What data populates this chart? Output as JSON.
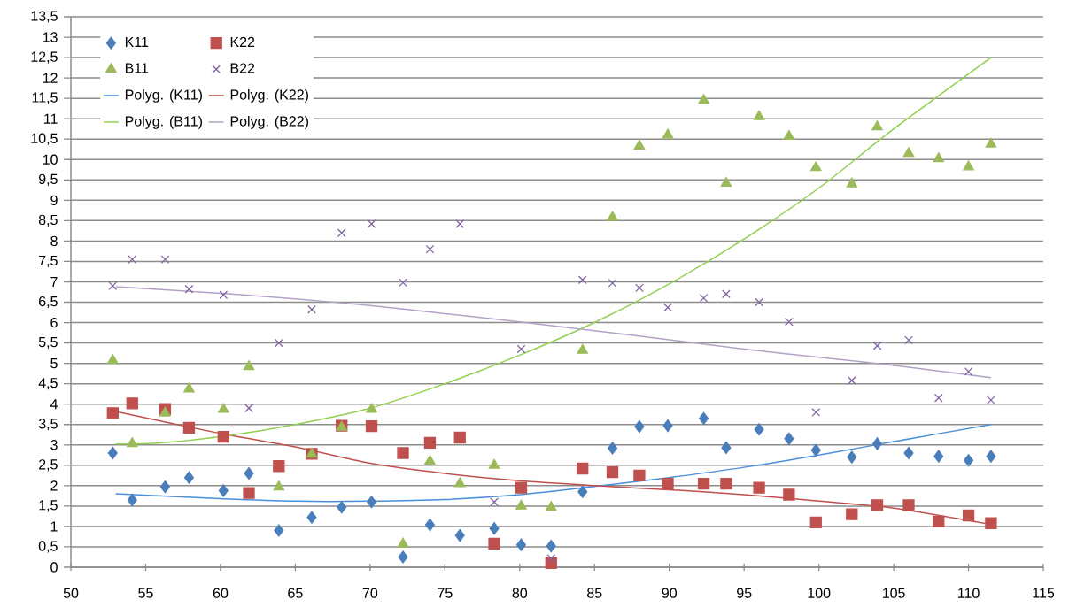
{
  "chart_data": {
    "type": "scatter",
    "grid": "y",
    "legend": "top left",
    "xlim": [
      50,
      115
    ],
    "xticks": [
      50,
      55,
      60,
      65,
      70,
      75,
      80,
      85,
      90,
      95,
      100,
      105,
      110,
      115
    ],
    "ylim": [
      0,
      13.5
    ],
    "yticks": [
      0,
      {
        "value": 0.5,
        "label": "0,5"
      },
      1,
      {
        "value": 1.5,
        "label": "1,5"
      },
      2,
      {
        "value": 2.5,
        "label": "2,5"
      },
      3,
      {
        "value": 3.5,
        "label": "3,5"
      },
      4,
      {
        "value": 4.5,
        "label": "4,5"
      },
      5,
      {
        "value": 5.5,
        "label": "5,5"
      },
      6,
      {
        "value": 6.5,
        "label": "6,5"
      },
      7,
      {
        "value": 7.5,
        "label": "7,5"
      },
      8,
      {
        "value": 8.5,
        "label": "8,5"
      },
      9,
      {
        "value": 9.5,
        "label": "9,5"
      },
      10,
      {
        "value": 10.5,
        "label": "10,5"
      },
      11,
      {
        "value": 11.5,
        "label": "11,5"
      },
      12,
      {
        "value": 12.5,
        "label": "12,5"
      },
      13,
      {
        "value": 13.5,
        "label": "13,5"
      }
    ],
    "x": [
      52.8,
      54.1,
      56.3,
      57.9,
      60.2,
      61.9,
      63.9,
      66.1,
      68.1,
      70.1,
      72.2,
      74,
      76,
      78.3,
      80.1,
      82.1,
      84.2,
      86.2,
      88,
      89.9,
      92.3,
      93.8,
      96,
      98,
      99.8,
      102.2,
      103.9,
      106,
      108,
      110,
      111.5
    ],
    "series": [
      {
        "name": "K11",
        "color": "#4a7ebb",
        "marker": "diamond",
        "values": [
          2.8,
          1.65,
          1.97,
          2.2,
          1.88,
          2.3,
          0.9,
          1.22,
          1.47,
          1.6,
          0.25,
          1.04,
          0.78,
          0.95,
          0.55,
          0.52,
          1.85,
          2.92,
          3.45,
          3.47,
          3.65,
          2.93,
          3.38,
          3.15,
          2.87,
          2.7,
          3.03,
          2.8,
          2.72,
          2.62,
          2.72
        ]
      },
      {
        "name": "K22",
        "color": "#c0504d",
        "marker": "square",
        "values": [
          3.78,
          4.02,
          3.88,
          3.42,
          3.2,
          1.82,
          2.48,
          2.78,
          3.47,
          3.46,
          2.8,
          3.05,
          3.18,
          0.58,
          1.95,
          0.1,
          2.42,
          2.33,
          2.25,
          2.05,
          2.05,
          2.05,
          1.95,
          1.78,
          1.1,
          1.3,
          1.52,
          1.52,
          1.12,
          1.27,
          1.08
        ]
      },
      {
        "name": "B11",
        "color": "#9bbb59",
        "marker": "triangle",
        "values": [
          5.07,
          3.03,
          3.78,
          4.37,
          3.87,
          4.92,
          1.97,
          2.77,
          3.43,
          3.87,
          0.57,
          2.6,
          2.05,
          2.5,
          1.5,
          1.47,
          5.32,
          8.58,
          10.33,
          10.6,
          11.45,
          9.42,
          11.05,
          10.57,
          9.8,
          9.4,
          10.8,
          10.15,
          10.02,
          9.82,
          10.38
        ]
      },
      {
        "name": "B22",
        "color": "#8064a2",
        "marker": "cross",
        "values": [
          6.9,
          7.55,
          7.55,
          6.82,
          6.68,
          3.9,
          5.5,
          6.32,
          8.2,
          8.42,
          6.98,
          7.8,
          8.42,
          1.6,
          5.35,
          0.22,
          7.05,
          6.97,
          6.85,
          6.37,
          6.6,
          6.7,
          6.5,
          6.02,
          3.8,
          4.58,
          5.43,
          5.57,
          4.15,
          4.8,
          4.1
        ]
      },
      {
        "name": "Polyg. (K11)",
        "type": "line",
        "color": "#4a90d9",
        "x": [
          53,
          60,
          65,
          70,
          75,
          80,
          85,
          90,
          95,
          100,
          105,
          111.5
        ],
        "values": [
          1.8,
          1.68,
          1.62,
          1.62,
          1.66,
          1.78,
          1.98,
          2.2,
          2.45,
          2.75,
          3.08,
          3.5
        ]
      },
      {
        "name": "Polyg. (K22)",
        "type": "line",
        "color": "#c0504d",
        "x": [
          53,
          60,
          65,
          70,
          75,
          80,
          85,
          90,
          95,
          100,
          105,
          111.5
        ],
        "values": [
          3.82,
          3.28,
          2.95,
          2.55,
          2.3,
          2.12,
          2.0,
          1.9,
          1.78,
          1.62,
          1.45,
          1.05
        ]
      },
      {
        "name": "Polyg. (B11)",
        "type": "line",
        "color": "#92d050",
        "x": [
          53,
          56,
          60,
          65,
          70,
          75,
          80,
          85,
          90,
          95,
          100,
          105,
          111.5
        ],
        "values": [
          3.02,
          3.05,
          3.2,
          3.5,
          3.9,
          4.5,
          5.2,
          6.0,
          6.95,
          8.05,
          9.3,
          10.75,
          12.5
        ]
      },
      {
        "name": "Polyg. (B22)",
        "type": "line",
        "color": "#b3a2c7",
        "x": [
          53,
          60,
          65,
          70,
          75,
          80,
          85,
          90,
          95,
          100,
          105,
          111.5
        ],
        "values": [
          6.88,
          6.72,
          6.58,
          6.42,
          6.22,
          6.02,
          5.8,
          5.58,
          5.35,
          5.15,
          4.95,
          4.65
        ]
      }
    ]
  }
}
